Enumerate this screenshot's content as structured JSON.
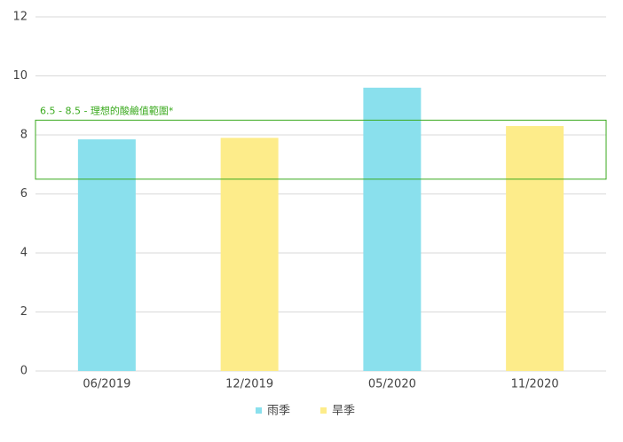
{
  "chart_data": {
    "type": "bar",
    "categories": [
      "06/2019",
      "12/2019",
      "05/2020",
      "11/2020"
    ],
    "series": [
      {
        "name": "雨季",
        "color": "#8ae0ed",
        "values": [
          7.85,
          null,
          9.6,
          null
        ]
      },
      {
        "name": "旱季",
        "color": "#fdec8a",
        "values": [
          null,
          7.9,
          null,
          8.3
        ]
      }
    ],
    "ylim": [
      0,
      12
    ],
    "yticks": [
      0,
      2,
      4,
      6,
      8,
      10,
      12
    ],
    "grid": true,
    "band": {
      "label": "6.5 - 8.5 - 理想的酸鹼值範圍*",
      "range": [
        6.5,
        8.5
      ],
      "color": "#3aaa1e"
    },
    "legend": "bottom"
  }
}
